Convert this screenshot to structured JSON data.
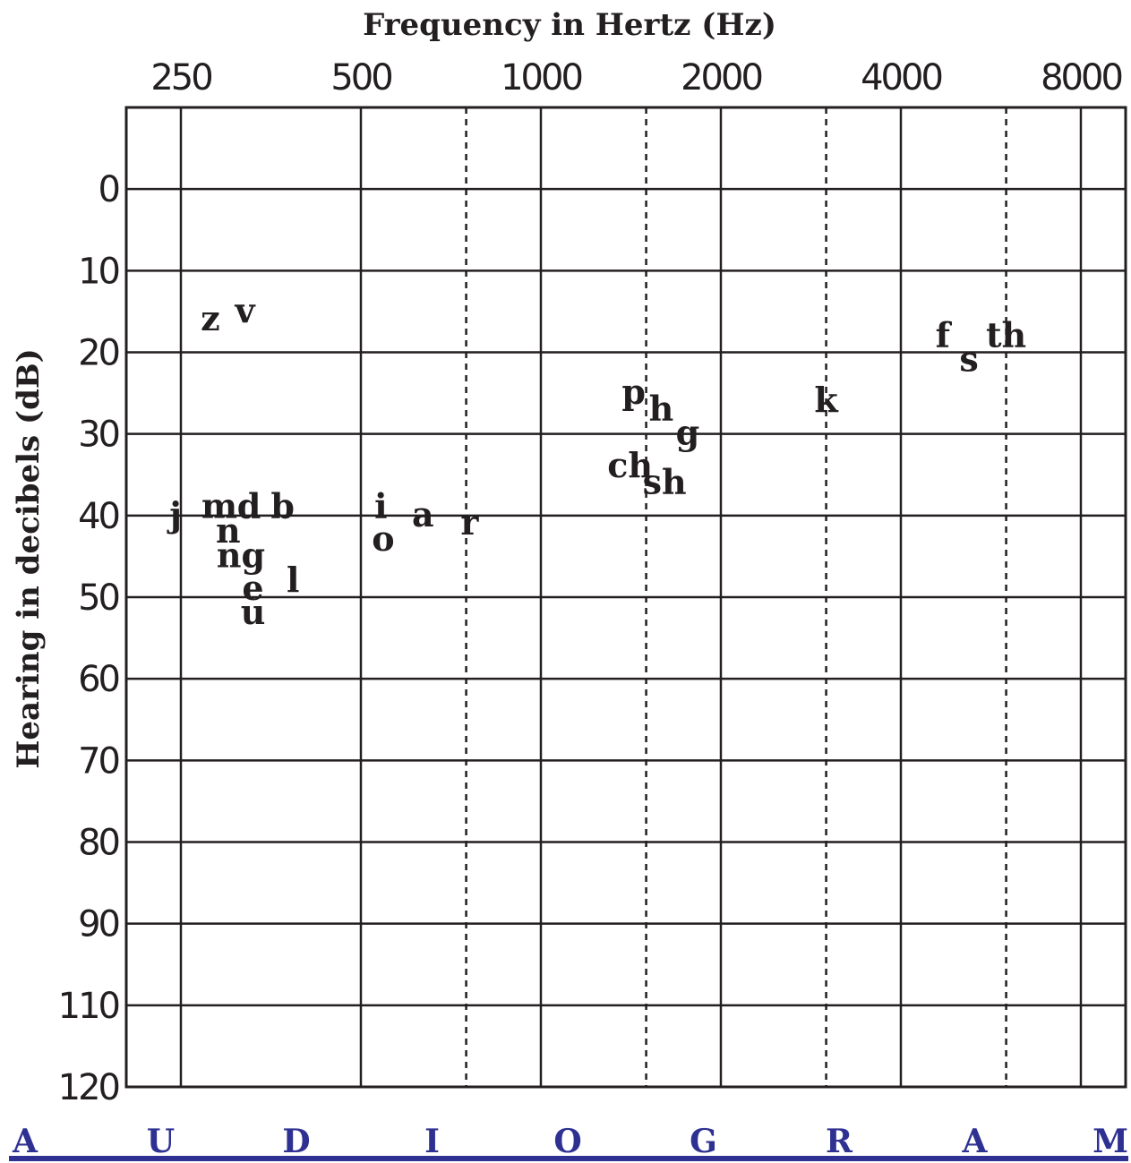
{
  "chart_data": {
    "type": "scatter",
    "title": "Frequency in Hertz (Hz)",
    "xlabel": "Frequency in Hertz (Hz)",
    "ylabel": "Hearing in decibels (dB)",
    "x_scale": "log2",
    "x_ticks": [
      "250",
      "500",
      "1000",
      "2000",
      "4000",
      "8000"
    ],
    "x_tick_values": [
      250,
      500,
      1000,
      2000,
      4000,
      8000
    ],
    "x_dashed_values": [
      750,
      1500,
      3000,
      6000
    ],
    "y_ticks": [
      "0",
      "10",
      "20",
      "30",
      "40",
      "50",
      "60",
      "70",
      "80",
      "90",
      "110",
      "120"
    ],
    "grid": true,
    "points": [
      {
        "label": "z",
        "x": 280,
        "y": 16
      },
      {
        "label": "v",
        "x": 320,
        "y": 15
      },
      {
        "label": "f",
        "x": 4700,
        "y": 18
      },
      {
        "label": "s",
        "x": 5200,
        "y": 21
      },
      {
        "label": "th",
        "x": 6000,
        "y": 18
      },
      {
        "label": "p",
        "x": 1430,
        "y": 25
      },
      {
        "label": "h",
        "x": 1590,
        "y": 27
      },
      {
        "label": "g",
        "x": 1760,
        "y": 30
      },
      {
        "label": "k",
        "x": 3000,
        "y": 26
      },
      {
        "label": "ch",
        "x": 1410,
        "y": 34
      },
      {
        "label": "sh",
        "x": 1610,
        "y": 36
      },
      {
        "label": "j",
        "x": 245,
        "y": 40
      },
      {
        "label": "m",
        "x": 290,
        "y": 39
      },
      {
        "label": "d",
        "x": 325,
        "y": 39
      },
      {
        "label": "b",
        "x": 370,
        "y": 39
      },
      {
        "label": "n",
        "x": 300,
        "y": 42
      },
      {
        "label": "ng",
        "x": 315,
        "y": 45
      },
      {
        "label": "e",
        "x": 330,
        "y": 49
      },
      {
        "label": "l",
        "x": 385,
        "y": 48
      },
      {
        "label": "u",
        "x": 330,
        "y": 52
      },
      {
        "label": "i",
        "x": 540,
        "y": 39
      },
      {
        "label": "o",
        "x": 545,
        "y": 43
      },
      {
        "label": "a",
        "x": 635,
        "y": 40
      },
      {
        "label": "r",
        "x": 760,
        "y": 41
      }
    ]
  },
  "footer": {
    "letters": [
      "A",
      "U",
      "D",
      "I",
      "O",
      "G",
      "R",
      "A",
      "M"
    ],
    "color": "#2e3192"
  },
  "colors": {
    "ink": "#231f20",
    "footer": "#2e3192"
  }
}
